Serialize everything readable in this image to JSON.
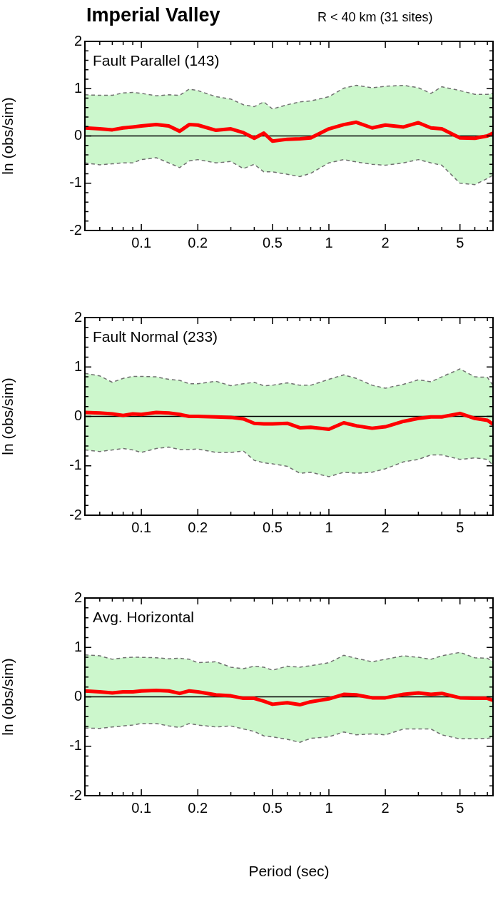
{
  "chart_data": [
    {
      "type": "line",
      "title": "Imperial Valley",
      "subtitle": "R < 40 km (31 sites)",
      "ylabel": "ln (obs/sim)",
      "annotations": [
        "Fault Parallel (143)"
      ],
      "x": [
        0.05,
        0.06,
        0.07,
        0.08,
        0.09,
        0.1,
        0.12,
        0.14,
        0.16,
        0.18,
        0.2,
        0.25,
        0.3,
        0.35,
        0.4,
        0.45,
        0.5,
        0.6,
        0.7,
        0.8,
        1,
        1.2,
        1.4,
        1.7,
        2,
        2.5,
        3,
        3.5,
        4,
        5,
        6,
        7,
        7.5
      ],
      "series": [
        {
          "color": "#ff0000",
          "values": [
            0.17,
            0.15,
            0.13,
            0.17,
            0.19,
            0.21,
            0.24,
            0.21,
            0.1,
            0.24,
            0.23,
            0.12,
            0.15,
            0.07,
            -0.05,
            0.06,
            -0.11,
            -0.07,
            -0.06,
            -0.04,
            0.15,
            0.24,
            0.29,
            0.17,
            0.23,
            0.19,
            0.28,
            0.17,
            0.15,
            -0.04,
            -0.05,
            0,
            0.06
          ],
          "upper": [
            0.87,
            0.86,
            0.86,
            0.91,
            0.92,
            0.9,
            0.85,
            0.87,
            0.86,
            0.99,
            0.96,
            0.83,
            0.78,
            0.66,
            0.62,
            0.72,
            0.57,
            0.66,
            0.72,
            0.74,
            0.83,
            1.01,
            1.07,
            1.02,
            1.05,
            1.07,
            1.02,
            0.9,
            1.04,
            0.96,
            0.88,
            0.88,
            0.9
          ],
          "lower": [
            -0.57,
            -0.61,
            -0.59,
            -0.57,
            -0.57,
            -0.5,
            -0.46,
            -0.57,
            -0.67,
            -0.53,
            -0.5,
            -0.57,
            -0.54,
            -0.69,
            -0.6,
            -0.76,
            -0.76,
            -0.81,
            -0.86,
            -0.79,
            -0.57,
            -0.5,
            -0.55,
            -0.6,
            -0.62,
            -0.57,
            -0.5,
            -0.57,
            -0.62,
            -1.0,
            -1.03,
            -0.9,
            -0.83
          ]
        },
        {
          "color": "#707070",
          "line_style": "dashed",
          "values": [
            0.87,
            0.86,
            0.86,
            0.91,
            0.92,
            0.9,
            0.85,
            0.87,
            0.86,
            0.99,
            0.96,
            0.83,
            0.78,
            0.66,
            0.62,
            0.72,
            0.57,
            0.66,
            0.72,
            0.74,
            0.83,
            1.01,
            1.07,
            1.02,
            1.05,
            1.07,
            1.02,
            0.9,
            1.04,
            0.96,
            0.88,
            0.88,
            0.9
          ]
        },
        {
          "color": "#707070",
          "line_style": "dashed",
          "values": [
            -0.57,
            -0.61,
            -0.59,
            -0.57,
            -0.57,
            -0.5,
            -0.46,
            -0.57,
            -0.67,
            -0.53,
            -0.5,
            -0.57,
            -0.54,
            -0.69,
            -0.6,
            -0.76,
            -0.76,
            -0.81,
            -0.86,
            -0.79,
            -0.57,
            -0.5,
            -0.55,
            -0.6,
            -0.62,
            -0.57,
            -0.5,
            -0.57,
            -0.62,
            -1.0,
            -1.03,
            -0.9,
            -0.83
          ]
        }
      ],
      "log": "x",
      "xlim": [
        0.05,
        7.5
      ],
      "xticks": [
        {
          "value": 0.05,
          "label": null
        },
        {
          "value": 0.06,
          "label": null
        },
        {
          "value": 0.07,
          "label": null
        },
        {
          "value": 0.08,
          "label": null
        },
        {
          "value": 0.09,
          "label": null
        },
        0.1,
        0.2,
        {
          "value": 0.3,
          "label": null
        },
        {
          "value": 0.4,
          "label": null
        },
        0.5,
        {
          "value": 0.6,
          "label": null
        },
        {
          "value": 0.7,
          "label": null
        },
        {
          "value": 0.8,
          "label": null
        },
        {
          "value": 0.9,
          "label": null
        },
        1,
        2,
        {
          "value": 3,
          "label": null
        },
        {
          "value": 4,
          "label": null
        },
        5,
        {
          "value": 6,
          "label": null
        },
        {
          "value": 7,
          "label": null
        }
      ],
      "ylim": [
        -2,
        2
      ],
      "yticks": [
        -2,
        {
          "value": -1.8,
          "label": null
        },
        {
          "value": -1.6,
          "label": null
        },
        {
          "value": -1.4,
          "label": null
        },
        {
          "value": -1.2,
          "label": null
        },
        -1,
        {
          "value": -0.8,
          "label": null
        },
        {
          "value": -0.6,
          "label": null
        },
        {
          "value": -0.4,
          "label": null
        },
        {
          "value": -0.2,
          "label": null
        },
        0,
        {
          "value": 0.2,
          "label": null
        },
        {
          "value": 0.4,
          "label": null
        },
        {
          "value": 0.6,
          "label": null
        },
        {
          "value": 0.8,
          "label": null
        },
        1,
        {
          "value": 1.2,
          "label": null
        },
        {
          "value": 1.4,
          "label": null
        },
        {
          "value": 1.6,
          "label": null
        },
        {
          "value": 1.8,
          "label": null
        },
        2
      ],
      "ref_lines": [
        {
          "axis": "y",
          "value": 0,
          "color": "#000000"
        }
      ],
      "grid": false
    },
    {
      "type": "line",
      "ylabel": "ln (obs/sim)",
      "annotations": [
        "Fault Normal (233)"
      ],
      "x": [
        0.05,
        0.06,
        0.07,
        0.08,
        0.09,
        0.1,
        0.12,
        0.14,
        0.16,
        0.18,
        0.2,
        0.25,
        0.3,
        0.35,
        0.4,
        0.45,
        0.5,
        0.6,
        0.7,
        0.8,
        1,
        1.2,
        1.4,
        1.7,
        2,
        2.5,
        3,
        3.5,
        4,
        5,
        6,
        7,
        7.5
      ],
      "series": [
        {
          "color": "#ff0000",
          "values": [
            0.08,
            0.07,
            0.05,
            0.02,
            0.05,
            0.04,
            0.08,
            0.07,
            0.04,
            0,
            0,
            -0.01,
            -0.02,
            -0.05,
            -0.14,
            -0.15,
            -0.15,
            -0.14,
            -0.23,
            -0.22,
            -0.26,
            -0.13,
            -0.19,
            -0.24,
            -0.21,
            -0.1,
            -0.04,
            -0.01,
            -0.01,
            0.06,
            -0.04,
            -0.08,
            -0.16
          ],
          "upper": [
            0.87,
            0.82,
            0.69,
            0.77,
            0.81,
            0.81,
            0.8,
            0.75,
            0.73,
            0.66,
            0.66,
            0.71,
            0.62,
            0.66,
            0.69,
            0.62,
            0.63,
            0.68,
            0.63,
            0.63,
            0.75,
            0.84,
            0.77,
            0.63,
            0.57,
            0.65,
            0.74,
            0.7,
            0.8,
            0.96,
            0.8,
            0.79,
            0.63
          ],
          "lower": [
            -0.68,
            -0.71,
            -0.68,
            -0.65,
            -0.68,
            -0.73,
            -0.65,
            -0.62,
            -0.67,
            -0.67,
            -0.66,
            -0.73,
            -0.73,
            -0.7,
            -0.89,
            -0.94,
            -0.96,
            -1.01,
            -1.15,
            -1.13,
            -1.22,
            -1.13,
            -1.15,
            -1.13,
            -1.06,
            -0.92,
            -0.87,
            -0.78,
            -0.78,
            -0.87,
            -0.84,
            -0.87,
            -0.99
          ]
        },
        {
          "color": "#707070",
          "line_style": "dashed",
          "values": [
            0.87,
            0.82,
            0.69,
            0.77,
            0.81,
            0.81,
            0.8,
            0.75,
            0.73,
            0.66,
            0.66,
            0.71,
            0.62,
            0.66,
            0.69,
            0.62,
            0.63,
            0.68,
            0.63,
            0.63,
            0.75,
            0.84,
            0.77,
            0.63,
            0.57,
            0.65,
            0.74,
            0.7,
            0.8,
            0.96,
            0.8,
            0.79,
            0.63
          ]
        },
        {
          "color": "#707070",
          "line_style": "dashed",
          "values": [
            -0.68,
            -0.71,
            -0.68,
            -0.65,
            -0.68,
            -0.73,
            -0.65,
            -0.62,
            -0.67,
            -0.67,
            -0.66,
            -0.73,
            -0.73,
            -0.7,
            -0.89,
            -0.94,
            -0.96,
            -1.01,
            -1.15,
            -1.13,
            -1.22,
            -1.13,
            -1.15,
            -1.13,
            -1.06,
            -0.92,
            -0.87,
            -0.78,
            -0.78,
            -0.87,
            -0.84,
            -0.87,
            -0.99
          ]
        }
      ],
      "log": "x",
      "xlim": [
        0.05,
        7.5
      ],
      "xticks": [
        {
          "value": 0.05,
          "label": null
        },
        {
          "value": 0.06,
          "label": null
        },
        {
          "value": 0.07,
          "label": null
        },
        {
          "value": 0.08,
          "label": null
        },
        {
          "value": 0.09,
          "label": null
        },
        0.1,
        0.2,
        {
          "value": 0.3,
          "label": null
        },
        {
          "value": 0.4,
          "label": null
        },
        0.5,
        {
          "value": 0.6,
          "label": null
        },
        {
          "value": 0.7,
          "label": null
        },
        {
          "value": 0.8,
          "label": null
        },
        {
          "value": 0.9,
          "label": null
        },
        1,
        2,
        {
          "value": 3,
          "label": null
        },
        {
          "value": 4,
          "label": null
        },
        5,
        {
          "value": 6,
          "label": null
        },
        {
          "value": 7,
          "label": null
        }
      ],
      "ylim": [
        -2,
        2
      ],
      "yticks": [
        -2,
        {
          "value": -1.8,
          "label": null
        },
        {
          "value": -1.6,
          "label": null
        },
        {
          "value": -1.4,
          "label": null
        },
        {
          "value": -1.2,
          "label": null
        },
        -1,
        {
          "value": -0.8,
          "label": null
        },
        {
          "value": -0.6,
          "label": null
        },
        {
          "value": -0.4,
          "label": null
        },
        {
          "value": -0.2,
          "label": null
        },
        0,
        {
          "value": 0.2,
          "label": null
        },
        {
          "value": 0.4,
          "label": null
        },
        {
          "value": 0.6,
          "label": null
        },
        {
          "value": 0.8,
          "label": null
        },
        1,
        {
          "value": 1.2,
          "label": null
        },
        {
          "value": 1.4,
          "label": null
        },
        {
          "value": 1.6,
          "label": null
        },
        {
          "value": 1.8,
          "label": null
        },
        2
      ],
      "ref_lines": [
        {
          "axis": "y",
          "value": 0,
          "color": "#000000"
        }
      ],
      "grid": false
    },
    {
      "type": "line",
      "ylabel": "ln (obs/sim)",
      "xlabel": "Period (sec)",
      "annotations": [
        "Avg. Horizontal"
      ],
      "x": [
        0.05,
        0.06,
        0.07,
        0.08,
        0.09,
        0.1,
        0.12,
        0.14,
        0.16,
        0.18,
        0.2,
        0.25,
        0.3,
        0.35,
        0.4,
        0.45,
        0.5,
        0.6,
        0.7,
        0.8,
        1,
        1.2,
        1.4,
        1.7,
        2,
        2.5,
        3,
        3.5,
        4,
        5,
        6,
        7,
        7.5
      ],
      "series": [
        {
          "color": "#ff0000",
          "values": [
            0.12,
            0.1,
            0.08,
            0.1,
            0.1,
            0.12,
            0.13,
            0.12,
            0.07,
            0.12,
            0.1,
            0.04,
            0.02,
            -0.03,
            -0.03,
            -0.09,
            -0.15,
            -0.12,
            -0.16,
            -0.1,
            -0.04,
            0.05,
            0.04,
            -0.02,
            -0.02,
            0.05,
            0.08,
            0.05,
            0.07,
            -0.02,
            -0.03,
            -0.03,
            -0.07
          ],
          "upper": [
            0.85,
            0.83,
            0.76,
            0.79,
            0.8,
            0.8,
            0.79,
            0.77,
            0.78,
            0.76,
            0.69,
            0.71,
            0.6,
            0.57,
            0.62,
            0.6,
            0.54,
            0.62,
            0.6,
            0.63,
            0.69,
            0.84,
            0.78,
            0.71,
            0.76,
            0.83,
            0.8,
            0.76,
            0.83,
            0.9,
            0.79,
            0.78,
            0.71
          ],
          "lower": [
            -0.63,
            -0.64,
            -0.61,
            -0.59,
            -0.57,
            -0.54,
            -0.54,
            -0.59,
            -0.62,
            -0.54,
            -0.57,
            -0.61,
            -0.59,
            -0.65,
            -0.7,
            -0.79,
            -0.81,
            -0.86,
            -0.92,
            -0.84,
            -0.81,
            -0.71,
            -0.77,
            -0.75,
            -0.77,
            -0.65,
            -0.65,
            -0.65,
            -0.77,
            -0.85,
            -0.85,
            -0.84,
            -0.82
          ]
        },
        {
          "color": "#707070",
          "line_style": "dashed",
          "values": [
            0.85,
            0.83,
            0.76,
            0.79,
            0.8,
            0.8,
            0.79,
            0.77,
            0.78,
            0.76,
            0.69,
            0.71,
            0.6,
            0.57,
            0.62,
            0.6,
            0.54,
            0.62,
            0.6,
            0.63,
            0.69,
            0.84,
            0.78,
            0.71,
            0.76,
            0.83,
            0.8,
            0.76,
            0.83,
            0.9,
            0.79,
            0.78,
            0.71
          ]
        },
        {
          "color": "#707070",
          "line_style": "dashed",
          "values": [
            -0.63,
            -0.64,
            -0.61,
            -0.59,
            -0.57,
            -0.54,
            -0.54,
            -0.59,
            -0.62,
            -0.54,
            -0.57,
            -0.61,
            -0.59,
            -0.65,
            -0.7,
            -0.79,
            -0.81,
            -0.86,
            -0.92,
            -0.84,
            -0.81,
            -0.71,
            -0.77,
            -0.75,
            -0.77,
            -0.65,
            -0.65,
            -0.65,
            -0.77,
            -0.85,
            -0.85,
            -0.84,
            -0.82
          ]
        }
      ],
      "log": "x",
      "xlim": [
        0.05,
        7.5
      ],
      "xticks": [
        {
          "value": 0.05,
          "label": null
        },
        {
          "value": 0.06,
          "label": null
        },
        {
          "value": 0.07,
          "label": null
        },
        {
          "value": 0.08,
          "label": null
        },
        {
          "value": 0.09,
          "label": null
        },
        0.1,
        0.2,
        {
          "value": 0.3,
          "label": null
        },
        {
          "value": 0.4,
          "label": null
        },
        0.5,
        {
          "value": 0.6,
          "label": null
        },
        {
          "value": 0.7,
          "label": null
        },
        {
          "value": 0.8,
          "label": null
        },
        {
          "value": 0.9,
          "label": null
        },
        1,
        2,
        {
          "value": 3,
          "label": null
        },
        {
          "value": 4,
          "label": null
        },
        5,
        {
          "value": 6,
          "label": null
        },
        {
          "value": 7,
          "label": null
        }
      ],
      "ylim": [
        -2,
        2
      ],
      "yticks": [
        -2,
        {
          "value": -1.8,
          "label": null
        },
        {
          "value": -1.6,
          "label": null
        },
        {
          "value": -1.4,
          "label": null
        },
        {
          "value": -1.2,
          "label": null
        },
        -1,
        {
          "value": -0.8,
          "label": null
        },
        {
          "value": -0.6,
          "label": null
        },
        {
          "value": -0.4,
          "label": null
        },
        {
          "value": -0.2,
          "label": null
        },
        0,
        {
          "value": 0.2,
          "label": null
        },
        {
          "value": 0.4,
          "label": null
        },
        {
          "value": 0.6,
          "label": null
        },
        {
          "value": 0.8,
          "label": null
        },
        1,
        {
          "value": 1.2,
          "label": null
        },
        {
          "value": 1.4,
          "label": null
        },
        {
          "value": 1.6,
          "label": null
        },
        {
          "value": 1.8,
          "label": null
        },
        2
      ],
      "ref_lines": [
        {
          "axis": "y",
          "value": 0,
          "color": "#000000"
        }
      ],
      "grid": false
    }
  ]
}
